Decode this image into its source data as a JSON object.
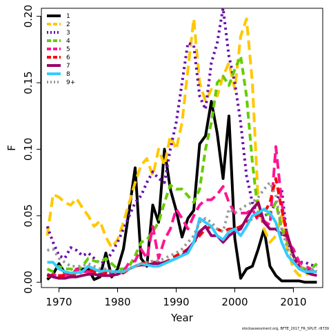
{
  "chart_data": {
    "type": "line",
    "xlabel": "Year",
    "ylabel": "F",
    "xlim": [
      1967,
      2015
    ],
    "ylim": [
      -0.004,
      0.206
    ],
    "xticks": [
      1970,
      1980,
      1990,
      2000,
      2010
    ],
    "yticks": [
      0.0,
      0.05,
      0.1,
      0.15,
      0.2
    ],
    "ytick_labels": [
      "0.00",
      "0.05",
      "0.10",
      "0.15",
      "0.20"
    ],
    "legend_position": "top-left",
    "credit": "stockassessment.org, BFTE_2017_FR_SPLIT, r8739",
    "x": [
      1968,
      1969,
      1970,
      1971,
      1972,
      1973,
      1974,
      1975,
      1976,
      1977,
      1978,
      1979,
      1980,
      1981,
      1982,
      1983,
      1984,
      1985,
      1986,
      1987,
      1988,
      1989,
      1990,
      1991,
      1992,
      1993,
      1994,
      1995,
      1996,
      1997,
      1998,
      1999,
      2000,
      2001,
      2002,
      2003,
      2004,
      2005,
      2006,
      2007,
      2008,
      2009,
      2010,
      2011,
      2012,
      2013,
      2014
    ],
    "series": [
      {
        "name": "1",
        "color": "#000000",
        "dash": "",
        "values": [
          0.002,
          0.006,
          0.014,
          0.007,
          0.004,
          0.01,
          0.01,
          0.01,
          0.002,
          0.004,
          0.022,
          0.004,
          0.01,
          0.025,
          0.055,
          0.086,
          0.018,
          0.012,
          0.058,
          0.045,
          0.1,
          0.07,
          0.054,
          0.034,
          0.048,
          0.054,
          0.104,
          0.11,
          0.136,
          0.112,
          0.078,
          0.125,
          0.033,
          0.003,
          0.01,
          0.012,
          0.025,
          0.04,
          0.012,
          0.005,
          0.001,
          0.001,
          0.001,
          0.001,
          0.0,
          0.0,
          0.0
        ]
      },
      {
        "name": "2",
        "color": "#FFC800",
        "dash": "14 7",
        "values": [
          0.035,
          0.066,
          0.064,
          0.06,
          0.058,
          0.063,
          0.056,
          0.05,
          0.042,
          0.046,
          0.034,
          0.026,
          0.032,
          0.045,
          0.06,
          0.075,
          0.088,
          0.093,
          0.08,
          0.1,
          0.088,
          0.11,
          0.1,
          0.12,
          0.16,
          0.198,
          0.15,
          0.136,
          0.145,
          0.14,
          0.155,
          0.165,
          0.145,
          0.185,
          0.198,
          0.15,
          0.06,
          0.04,
          0.03,
          0.035,
          0.05,
          0.025,
          0.01,
          0.005,
          0.005,
          0.008,
          0.01
        ]
      },
      {
        "name": "3",
        "color": "#6A0DAD",
        "dash": "3 5",
        "values": [
          0.042,
          0.03,
          0.02,
          0.018,
          0.026,
          0.024,
          0.02,
          0.022,
          0.018,
          0.014,
          0.016,
          0.022,
          0.03,
          0.04,
          0.05,
          0.06,
          0.065,
          0.075,
          0.083,
          0.078,
          0.075,
          0.1,
          0.12,
          0.15,
          0.18,
          0.178,
          0.14,
          0.13,
          0.165,
          0.18,
          0.206,
          0.17,
          0.15,
          0.12,
          0.08,
          0.06,
          0.05,
          0.05,
          0.052,
          0.06,
          0.07,
          0.03,
          0.02,
          0.015,
          0.015,
          0.013,
          0.012
        ]
      },
      {
        "name": "4",
        "color": "#66CC00",
        "dash": "10 6",
        "values": [
          0.01,
          0.008,
          0.012,
          0.01,
          0.01,
          0.008,
          0.012,
          0.018,
          0.016,
          0.015,
          0.018,
          0.014,
          0.01,
          0.01,
          0.012,
          0.02,
          0.03,
          0.032,
          0.038,
          0.045,
          0.06,
          0.073,
          0.07,
          0.07,
          0.065,
          0.06,
          0.07,
          0.1,
          0.12,
          0.15,
          0.155,
          0.148,
          0.16,
          0.17,
          0.14,
          0.09,
          0.052,
          0.05,
          0.052,
          0.06,
          0.04,
          0.03,
          0.02,
          0.012,
          0.01,
          0.01,
          0.014
        ]
      },
      {
        "name": "5",
        "color": "#FF1493",
        "dash": "14 7",
        "values": [
          0.004,
          0.006,
          0.004,
          0.006,
          0.004,
          0.01,
          0.008,
          0.008,
          0.008,
          0.005,
          0.008,
          0.006,
          0.006,
          0.008,
          0.015,
          0.016,
          0.025,
          0.018,
          0.042,
          0.018,
          0.032,
          0.04,
          0.055,
          0.048,
          0.04,
          0.05,
          0.058,
          0.062,
          0.062,
          0.066,
          0.072,
          0.06,
          0.052,
          0.052,
          0.052,
          0.055,
          0.046,
          0.046,
          0.043,
          0.102,
          0.06,
          0.03,
          0.025,
          0.015,
          0.012,
          0.01,
          0.005
        ]
      },
      {
        "name": "6",
        "color": "#FF0000",
        "dash": "10 6",
        "values": [
          0.004,
          0.005,
          0.005,
          0.005,
          0.006,
          0.006,
          0.008,
          0.01,
          0.008,
          0.007,
          0.007,
          0.006,
          0.006,
          0.007,
          0.01,
          0.012,
          0.014,
          0.015,
          0.015,
          0.015,
          0.015,
          0.017,
          0.02,
          0.022,
          0.025,
          0.03,
          0.035,
          0.04,
          0.042,
          0.04,
          0.038,
          0.04,
          0.04,
          0.042,
          0.045,
          0.048,
          0.05,
          0.052,
          0.06,
          0.078,
          0.055,
          0.035,
          0.02,
          0.012,
          0.01,
          0.008,
          0.008
        ]
      },
      {
        "name": "7",
        "color": "#990066",
        "dash": "",
        "values": [
          0.006,
          0.004,
          0.003,
          0.003,
          0.004,
          0.004,
          0.005,
          0.006,
          0.006,
          0.005,
          0.005,
          0.005,
          0.006,
          0.008,
          0.01,
          0.012,
          0.013,
          0.013,
          0.014,
          0.014,
          0.015,
          0.016,
          0.018,
          0.02,
          0.025,
          0.03,
          0.038,
          0.042,
          0.035,
          0.035,
          0.03,
          0.035,
          0.038,
          0.04,
          0.048,
          0.055,
          0.06,
          0.045,
          0.04,
          0.04,
          0.036,
          0.035,
          0.02,
          0.01,
          0.008,
          0.006,
          0.005
        ]
      },
      {
        "name": "8",
        "color": "#33CCFF",
        "dash": "",
        "values": [
          0.015,
          0.015,
          0.01,
          0.008,
          0.007,
          0.007,
          0.008,
          0.012,
          0.01,
          0.008,
          0.009,
          0.008,
          0.008,
          0.008,
          0.01,
          0.012,
          0.014,
          0.013,
          0.012,
          0.012,
          0.014,
          0.016,
          0.018,
          0.02,
          0.022,
          0.03,
          0.048,
          0.045,
          0.042,
          0.035,
          0.032,
          0.038,
          0.04,
          0.035,
          0.042,
          0.05,
          0.052,
          0.055,
          0.052,
          0.045,
          0.03,
          0.02,
          0.015,
          0.01,
          0.008,
          0.008,
          0.008
        ]
      },
      {
        "name": "9+",
        "color": "#999999",
        "dash": "3 5",
        "values": [
          0.024,
          0.025,
          0.018,
          0.015,
          0.012,
          0.012,
          0.012,
          0.014,
          0.012,
          0.01,
          0.01,
          0.008,
          0.007,
          0.008,
          0.01,
          0.012,
          0.014,
          0.015,
          0.016,
          0.016,
          0.018,
          0.02,
          0.022,
          0.025,
          0.03,
          0.035,
          0.045,
          0.048,
          0.045,
          0.04,
          0.038,
          0.055,
          0.052,
          0.055,
          0.058,
          0.06,
          0.064,
          0.07,
          0.075,
          0.065,
          0.04,
          0.025,
          0.018,
          0.012,
          0.01,
          0.01,
          0.008
        ]
      }
    ]
  }
}
